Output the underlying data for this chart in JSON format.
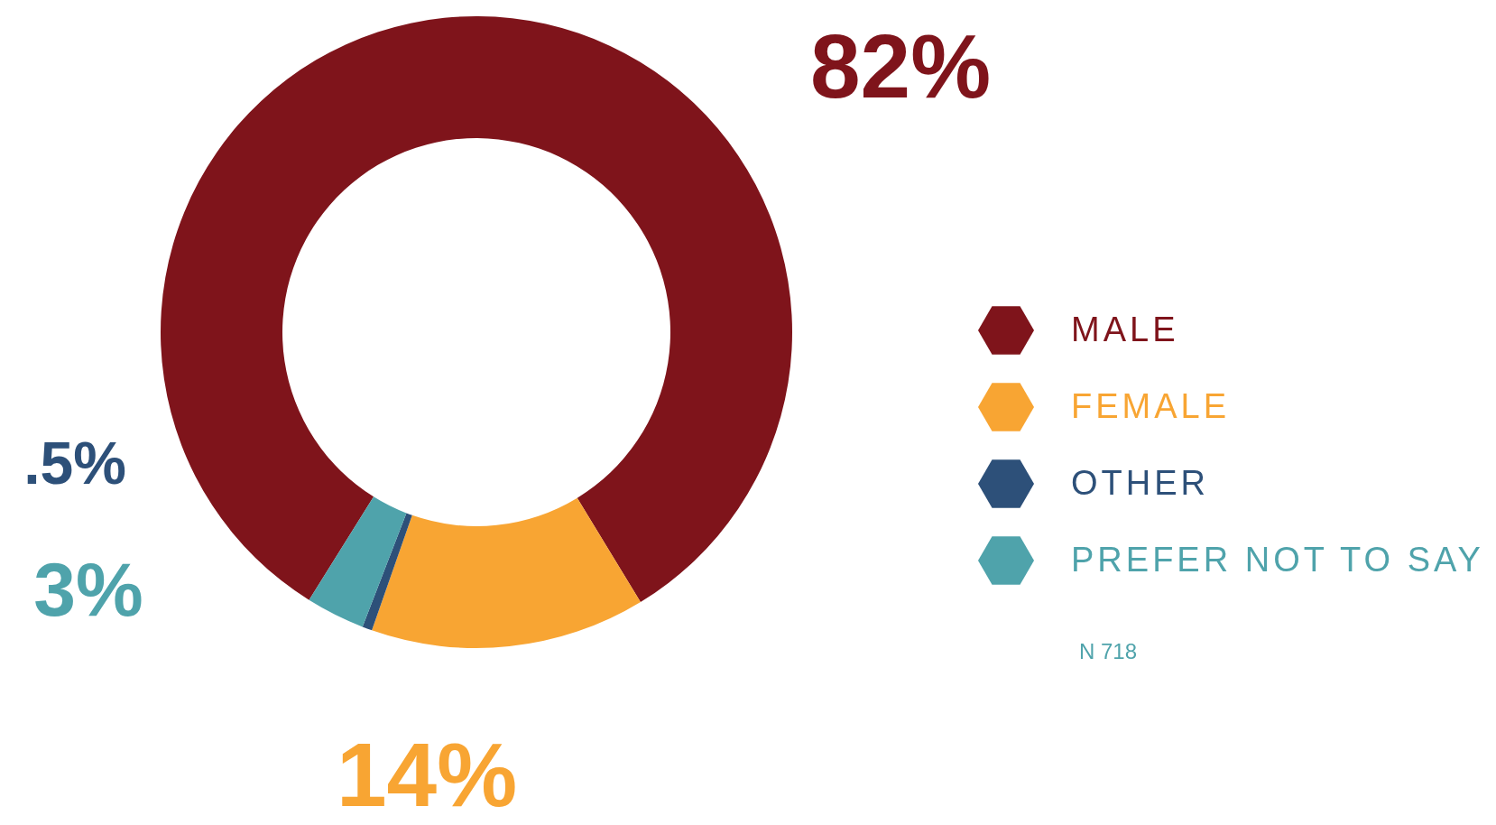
{
  "chart_data": {
    "type": "donut",
    "categories": [
      "MALE",
      "FEMALE",
      "OTHER",
      "PREFER NOT TO SAY"
    ],
    "values": [
      82,
      14,
      0.5,
      3
    ],
    "colors": [
      "#7f141b",
      "#f8a533",
      "#2d5079",
      "#4fa3ab"
    ],
    "value_labels": [
      "82%",
      "14%",
      ".5%",
      "3%"
    ],
    "legend": "right",
    "annotations": [
      "N 718"
    ]
  }
}
